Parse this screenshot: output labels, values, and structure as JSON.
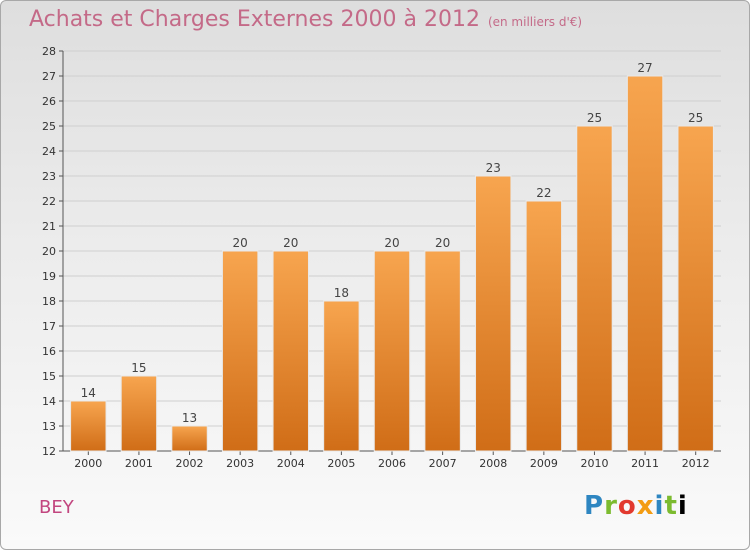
{
  "title": "Achats et Charges Externes 2000 à 2012",
  "unit": "(en milliers d'€)",
  "commune": "BEY",
  "brand": "Proxiti",
  "colors": {
    "bar_top": "#f7a54f",
    "bar_bottom": "#d06d17",
    "grid": "#cfcfcf",
    "title": "#c46a88"
  },
  "chart_data": {
    "type": "bar",
    "categories": [
      "2000",
      "2001",
      "2002",
      "2003",
      "2004",
      "2005",
      "2006",
      "2007",
      "2008",
      "2009",
      "2010",
      "2011",
      "2012"
    ],
    "values": [
      14,
      15,
      13,
      20,
      20,
      18,
      20,
      20,
      23,
      22,
      25,
      27,
      25
    ],
    "data_labels": [
      "14",
      "15",
      "13",
      "20",
      "20",
      "18",
      "20",
      "20",
      "23",
      "22",
      "25",
      "27",
      "25"
    ],
    "ylim": [
      12,
      28
    ],
    "yticks": [
      "12",
      "13",
      "14",
      "15",
      "16",
      "17",
      "18",
      "19",
      "20",
      "21",
      "22",
      "23",
      "24",
      "25",
      "26",
      "27",
      "28"
    ],
    "grid": true
  }
}
